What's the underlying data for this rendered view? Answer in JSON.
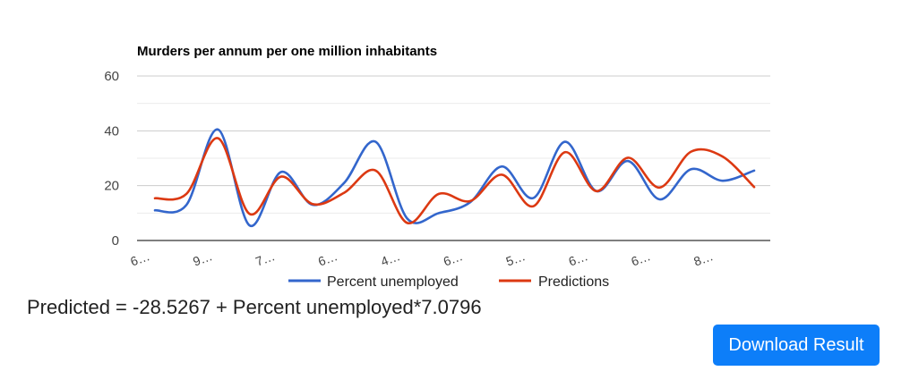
{
  "chart_data": {
    "type": "line",
    "title": "Murders per annum per one million inhabitants",
    "xlabel": "",
    "ylabel": "",
    "ylim": [
      0,
      60
    ],
    "yticks": [
      0,
      20,
      40,
      60
    ],
    "grid": true,
    "legend": "bottom",
    "x_tick_labels": [
      "6…",
      "9…",
      "7…",
      "6…",
      "4…",
      "6…",
      "5…",
      "6…",
      "6…",
      "8…"
    ],
    "series": [
      {
        "name": "Percent unemployed",
        "color": "#3366cc",
        "values": [
          11,
          13,
          40.5,
          5.5,
          25,
          13,
          21,
          36,
          8,
          10,
          14,
          27,
          15.5,
          36,
          18,
          29,
          15,
          26,
          21.8,
          25.5
        ]
      },
      {
        "name": "Predictions",
        "color": "#dc3912",
        "values": [
          15.4,
          17,
          37.3,
          9.7,
          23.3,
          13.3,
          17.4,
          25.5,
          6.4,
          17,
          14.4,
          24,
          12.5,
          32.2,
          18,
          30.2,
          19.3,
          32.4,
          30.6,
          19.5
        ]
      }
    ]
  },
  "equation_text": "Predicted = -28.5267 + Percent unemployed*7.0796",
  "download_button_label": "Download Result"
}
